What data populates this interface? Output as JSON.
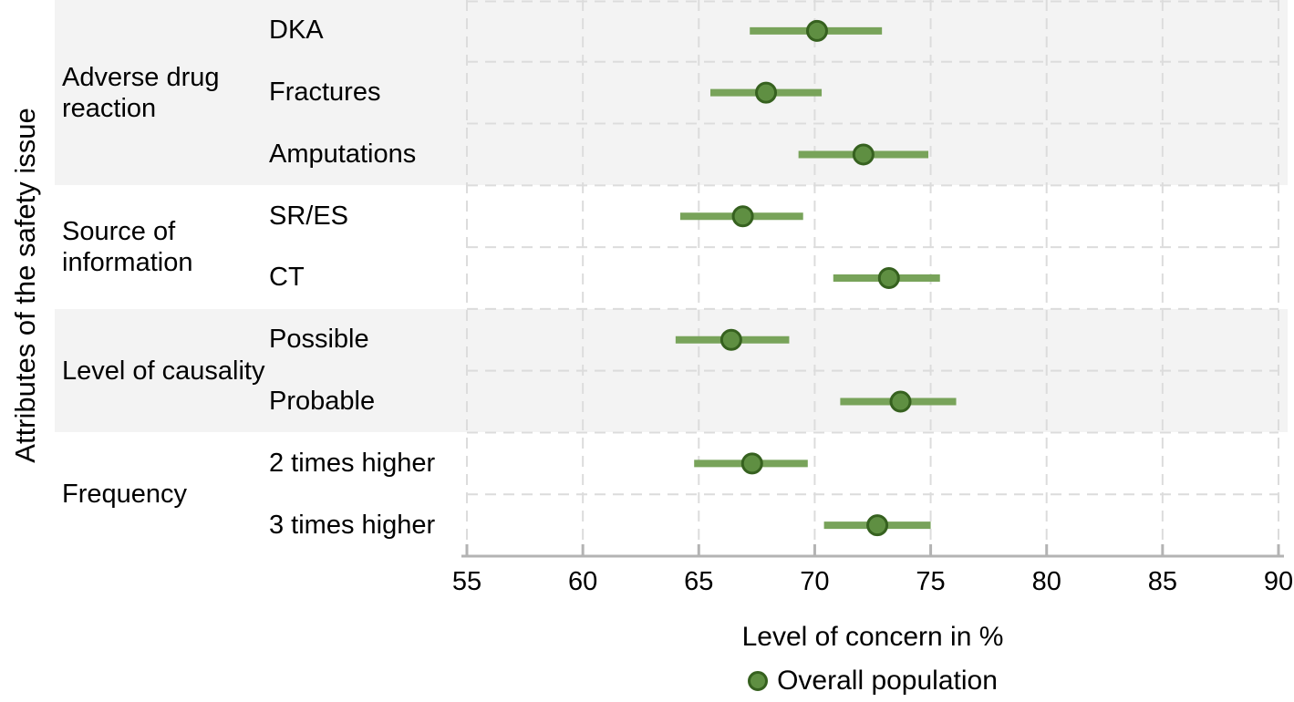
{
  "y_axis_label": "Attributes of the safety issue",
  "x_axis": {
    "title": "Level of concern in %",
    "ticks": [
      55,
      60,
      65,
      70,
      75,
      80,
      85,
      90
    ],
    "min": 55,
    "max": 90
  },
  "legend": {
    "label": "Overall population"
  },
  "colors": {
    "band_shade": "#f3f3f3",
    "band_plain": "#ffffff",
    "gridline": "#dcdcdc",
    "axis_line": "#b3b3b3",
    "ci_line": "#78a35a",
    "dot_fill": "#5f8f42",
    "dot_stroke": "#36611f"
  },
  "chart_data": {
    "type": "scatter",
    "subtype": "forest-dot-with-horizontal-ci",
    "title": "",
    "xlabel": "Level of concern in %",
    "ylabel": "Attributes of the safety issue",
    "xlim": [
      55,
      90
    ],
    "grid": true,
    "legend_position": "bottom",
    "series_name": "Overall population",
    "groups": [
      {
        "label": "Adverse drug reaction",
        "items": [
          {
            "label": "DKA",
            "point": 70.1,
            "ci_low": 67.2,
            "ci_high": 72.9
          },
          {
            "label": "Fractures",
            "point": 67.9,
            "ci_low": 65.5,
            "ci_high": 70.3
          },
          {
            "label": "Amputations",
            "point": 72.1,
            "ci_low": 69.3,
            "ci_high": 74.9
          }
        ]
      },
      {
        "label": "Source of information",
        "items": [
          {
            "label": "SR/ES",
            "point": 66.9,
            "ci_low": 64.2,
            "ci_high": 69.5
          },
          {
            "label": "CT",
            "point": 73.2,
            "ci_low": 70.8,
            "ci_high": 75.4
          }
        ]
      },
      {
        "label": "Level of causality",
        "items": [
          {
            "label": "Possible",
            "point": 66.4,
            "ci_low": 64.0,
            "ci_high": 68.9
          },
          {
            "label": "Probable",
            "point": 73.7,
            "ci_low": 71.1,
            "ci_high": 76.1
          }
        ]
      },
      {
        "label": "Frequency",
        "items": [
          {
            "label": "2 times higher",
            "point": 67.3,
            "ci_low": 64.8,
            "ci_high": 69.7
          },
          {
            "label": "3 times higher",
            "point": 72.7,
            "ci_low": 70.4,
            "ci_high": 75.0
          }
        ]
      }
    ]
  }
}
